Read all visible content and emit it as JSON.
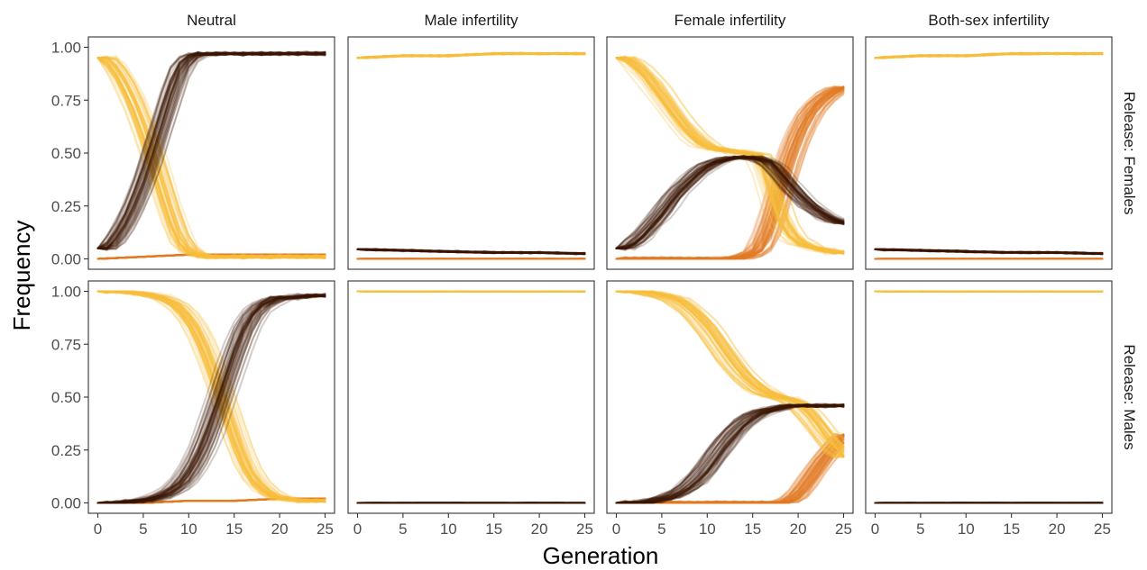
{
  "chart_data": {
    "type": "line",
    "xlabel": "Generation",
    "ylabel": "Frequency",
    "columns": [
      "Neutral",
      "Male infertility",
      "Female infertility",
      "Both-sex infertility"
    ],
    "rows": [
      "Release: Females",
      "Release: Males"
    ],
    "xlim": [
      0,
      25
    ],
    "ylim": [
      0,
      1
    ],
    "x_ticks": [
      0,
      5,
      10,
      15,
      20,
      25
    ],
    "y_ticks": [
      "0.00",
      "0.25",
      "0.50",
      "0.75",
      "1.00"
    ],
    "replicates_per_series": 50,
    "series_colors": {
      "wild_type": "#F9BE3D",
      "drive": "#3B1606",
      "resistance": "#E07B24",
      "secondary": "#C9601A"
    },
    "panels": [
      {
        "column": "Neutral",
        "row": "Release: Females",
        "series": [
          {
            "key": "wild_type",
            "x": [
              0,
              1,
              2,
              3,
              4,
              5,
              6,
              7,
              8,
              9,
              10,
              11,
              12,
              13,
              14,
              15,
              16,
              17,
              18,
              19,
              20,
              21,
              22,
              23,
              24,
              25
            ],
            "y": [
              0.95,
              0.95,
              0.9,
              0.83,
              0.74,
              0.63,
              0.5,
              0.36,
              0.22,
              0.1,
              0.04,
              0.02,
              0.01,
              0.01,
              0.01,
              0.01,
              0.01,
              0.01,
              0.01,
              0.01,
              0.01,
              0.01,
              0.01,
              0.01,
              0.01,
              0.01
            ]
          },
          {
            "key": "drive",
            "x": [
              0,
              1,
              2,
              3,
              4,
              5,
              6,
              7,
              8,
              9,
              10,
              11,
              12,
              13,
              14,
              15,
              16,
              17,
              18,
              19,
              20,
              21,
              22,
              23,
              24,
              25
            ],
            "y": [
              0.05,
              0.05,
              0.1,
              0.17,
              0.26,
              0.37,
              0.5,
              0.64,
              0.78,
              0.9,
              0.95,
              0.97,
              0.97,
              0.97,
              0.97,
              0.97,
              0.97,
              0.97,
              0.97,
              0.97,
              0.97,
              0.97,
              0.97,
              0.97,
              0.97,
              0.97
            ]
          },
          {
            "key": "resistance",
            "x": [
              0,
              5,
              10,
              15,
              20,
              25
            ],
            "y": [
              0.0,
              0.01,
              0.02,
              0.02,
              0.02,
              0.02
            ]
          }
        ]
      },
      {
        "column": "Male infertility",
        "row": "Release: Females",
        "series": [
          {
            "key": "wild_type",
            "x": [
              0,
              5,
              10,
              15,
              20,
              25
            ],
            "y": [
              0.95,
              0.96,
              0.96,
              0.97,
              0.97,
              0.97
            ]
          },
          {
            "key": "drive",
            "x": [
              0,
              5,
              10,
              15,
              20,
              25
            ],
            "y": [
              0.045,
              0.04,
              0.035,
              0.03,
              0.03,
              0.025
            ]
          },
          {
            "key": "resistance",
            "x": [
              0,
              25
            ],
            "y": [
              0.0,
              0.0
            ]
          }
        ]
      },
      {
        "column": "Female infertility",
        "row": "Release: Females",
        "series": [
          {
            "key": "wild_type",
            "x": [
              0,
              1,
              2,
              3,
              4,
              5,
              6,
              7,
              8,
              9,
              10,
              11,
              12,
              13,
              14,
              15,
              16,
              17,
              18,
              19,
              20,
              21,
              22,
              23,
              24,
              25
            ],
            "y": [
              0.95,
              0.95,
              0.92,
              0.88,
              0.83,
              0.77,
              0.71,
              0.65,
              0.6,
              0.56,
              0.53,
              0.52,
              0.51,
              0.51,
              0.5,
              0.5,
              0.48,
              0.35,
              0.2,
              0.12,
              0.08,
              0.06,
              0.05,
              0.04,
              0.03,
              0.03
            ]
          },
          {
            "key": "drive",
            "x": [
              0,
              1,
              2,
              3,
              4,
              5,
              6,
              7,
              8,
              9,
              10,
              11,
              12,
              13,
              14,
              15,
              16,
              17,
              18,
              19,
              20,
              21,
              22,
              23,
              24,
              25
            ],
            "y": [
              0.05,
              0.05,
              0.08,
              0.12,
              0.17,
              0.22,
              0.28,
              0.33,
              0.37,
              0.41,
              0.44,
              0.46,
              0.47,
              0.48,
              0.48,
              0.48,
              0.47,
              0.45,
              0.4,
              0.35,
              0.3,
              0.26,
              0.23,
              0.2,
              0.18,
              0.17
            ]
          },
          {
            "key": "resistance",
            "x": [
              0,
              1,
              2,
              3,
              4,
              5,
              6,
              7,
              8,
              9,
              10,
              11,
              12,
              13,
              14,
              15,
              16,
              17,
              18,
              19,
              20,
              21,
              22,
              23,
              24,
              25
            ],
            "y": [
              0.0,
              0.0,
              0.0,
              0.0,
              0.0,
              0.0,
              0.0,
              0.0,
              0.0,
              0.0,
              0.0,
              0.0,
              0.0,
              0.0,
              0.01,
              0.02,
              0.05,
              0.15,
              0.3,
              0.45,
              0.57,
              0.66,
              0.72,
              0.76,
              0.79,
              0.81
            ]
          }
        ]
      },
      {
        "column": "Both-sex infertility",
        "row": "Release: Females",
        "series": [
          {
            "key": "wild_type",
            "x": [
              0,
              5,
              10,
              15,
              20,
              25
            ],
            "y": [
              0.95,
              0.96,
              0.96,
              0.97,
              0.97,
              0.97
            ]
          },
          {
            "key": "drive",
            "x": [
              0,
              5,
              10,
              15,
              20,
              25
            ],
            "y": [
              0.045,
              0.04,
              0.035,
              0.03,
              0.03,
              0.025
            ]
          },
          {
            "key": "resistance",
            "x": [
              0,
              25
            ],
            "y": [
              0.0,
              0.0
            ]
          }
        ]
      },
      {
        "column": "Neutral",
        "row": "Release: Males",
        "series": [
          {
            "key": "wild_type",
            "x": [
              0,
              1,
              2,
              3,
              4,
              5,
              6,
              7,
              8,
              9,
              10,
              11,
              12,
              13,
              14,
              15,
              16,
              17,
              18,
              19,
              20,
              21,
              22,
              23,
              24,
              25
            ],
            "y": [
              1.0,
              1.0,
              1.0,
              1.0,
              0.99,
              0.99,
              0.98,
              0.97,
              0.95,
              0.92,
              0.87,
              0.8,
              0.7,
              0.58,
              0.45,
              0.32,
              0.2,
              0.12,
              0.07,
              0.04,
              0.02,
              0.02,
              0.01,
              0.01,
              0.01,
              0.01
            ]
          },
          {
            "key": "drive",
            "x": [
              0,
              1,
              2,
              3,
              4,
              5,
              6,
              7,
              8,
              9,
              10,
              11,
              12,
              13,
              14,
              15,
              16,
              17,
              18,
              19,
              20,
              21,
              22,
              23,
              24,
              25
            ],
            "y": [
              0.0,
              0.0,
              0.0,
              0.0,
              0.01,
              0.01,
              0.02,
              0.03,
              0.05,
              0.08,
              0.13,
              0.2,
              0.3,
              0.42,
              0.55,
              0.68,
              0.8,
              0.88,
              0.93,
              0.95,
              0.97,
              0.97,
              0.97,
              0.98,
              0.98,
              0.98
            ]
          },
          {
            "key": "resistance",
            "x": [
              0,
              5,
              10,
              15,
              20,
              25
            ],
            "y": [
              0.0,
              0.0,
              0.01,
              0.01,
              0.02,
              0.02
            ]
          }
        ]
      },
      {
        "column": "Male infertility",
        "row": "Release: Males",
        "series": [
          {
            "key": "wild_type",
            "x": [
              0,
              25
            ],
            "y": [
              1.0,
              1.0
            ]
          },
          {
            "key": "drive",
            "x": [
              0,
              25
            ],
            "y": [
              0.0,
              0.0
            ]
          }
        ]
      },
      {
        "column": "Female infertility",
        "row": "Release: Males",
        "series": [
          {
            "key": "wild_type",
            "x": [
              0,
              1,
              2,
              3,
              4,
              5,
              6,
              7,
              8,
              9,
              10,
              11,
              12,
              13,
              14,
              15,
              16,
              17,
              18,
              19,
              20,
              21,
              22,
              23,
              24,
              25
            ],
            "y": [
              1.0,
              1.0,
              1.0,
              1.0,
              0.99,
              0.98,
              0.97,
              0.95,
              0.92,
              0.88,
              0.83,
              0.77,
              0.71,
              0.65,
              0.6,
              0.56,
              0.53,
              0.51,
              0.5,
              0.49,
              0.47,
              0.43,
              0.38,
              0.32,
              0.27,
              0.22
            ]
          },
          {
            "key": "drive",
            "x": [
              0,
              1,
              2,
              3,
              4,
              5,
              6,
              7,
              8,
              9,
              10,
              11,
              12,
              13,
              14,
              15,
              16,
              17,
              18,
              19,
              20,
              21,
              22,
              23,
              24,
              25
            ],
            "y": [
              0.0,
              0.0,
              0.0,
              0.0,
              0.01,
              0.02,
              0.03,
              0.05,
              0.08,
              0.12,
              0.17,
              0.23,
              0.29,
              0.34,
              0.38,
              0.41,
              0.43,
              0.44,
              0.45,
              0.46,
              0.46,
              0.46,
              0.46,
              0.46,
              0.46,
              0.46
            ]
          },
          {
            "key": "resistance",
            "x": [
              0,
              1,
              2,
              3,
              4,
              5,
              6,
              7,
              8,
              9,
              10,
              11,
              12,
              13,
              14,
              15,
              16,
              17,
              18,
              19,
              20,
              21,
              22,
              23,
              24,
              25
            ],
            "y": [
              0.0,
              0.0,
              0.0,
              0.0,
              0.0,
              0.0,
              0.0,
              0.0,
              0.0,
              0.0,
              0.0,
              0.0,
              0.0,
              0.0,
              0.0,
              0.0,
              0.0,
              0.0,
              0.0,
              0.01,
              0.04,
              0.1,
              0.16,
              0.22,
              0.27,
              0.32
            ]
          }
        ]
      },
      {
        "column": "Both-sex infertility",
        "row": "Release: Males",
        "series": [
          {
            "key": "wild_type",
            "x": [
              0,
              25
            ],
            "y": [
              1.0,
              1.0
            ]
          },
          {
            "key": "drive",
            "x": [
              0,
              25
            ],
            "y": [
              0.0,
              0.0
            ]
          }
        ]
      }
    ]
  }
}
